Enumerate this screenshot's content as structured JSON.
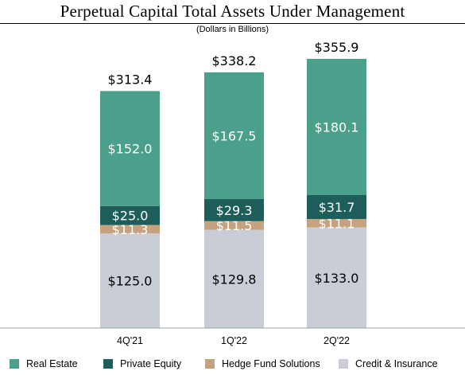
{
  "chart_data": {
    "type": "bar",
    "stacked": true,
    "title": "Perpetual Capital Total Assets Under Management",
    "subtitle": "(Dollars in Billions)",
    "categories": [
      "4Q'21",
      "1Q'22",
      "2Q'22"
    ],
    "series": [
      {
        "name": "Credit & Insurance",
        "color": "#c9cdd5",
        "values": [
          125.0,
          129.8,
          133.0
        ],
        "labels": [
          "$125.0",
          "$129.8",
          "$133.0"
        ]
      },
      {
        "name": "Hedge Fund Solutions",
        "color": "#c6a27e",
        "values": [
          11.3,
          11.5,
          11.1
        ],
        "labels": [
          "$11.3",
          "$11.5",
          "$11.1"
        ]
      },
      {
        "name": "Private Equity",
        "color": "#1d5e5a",
        "values": [
          25.0,
          29.3,
          31.7
        ],
        "labels": [
          "$25.0",
          "$29.3",
          "$31.7"
        ]
      },
      {
        "name": "Real Estate",
        "color": "#4aa08a",
        "values": [
          152.0,
          167.5,
          180.1
        ],
        "labels": [
          "$152.0",
          "$167.5",
          "$180.1"
        ]
      }
    ],
    "totals": [
      "$313.4",
      "$338.2",
      "$355.9"
    ],
    "legend_order": [
      "Real Estate",
      "Private Equity",
      "Hedge Fund Solutions",
      "Credit & Insurance"
    ],
    "legend_position": "bottom",
    "grid": false
  }
}
